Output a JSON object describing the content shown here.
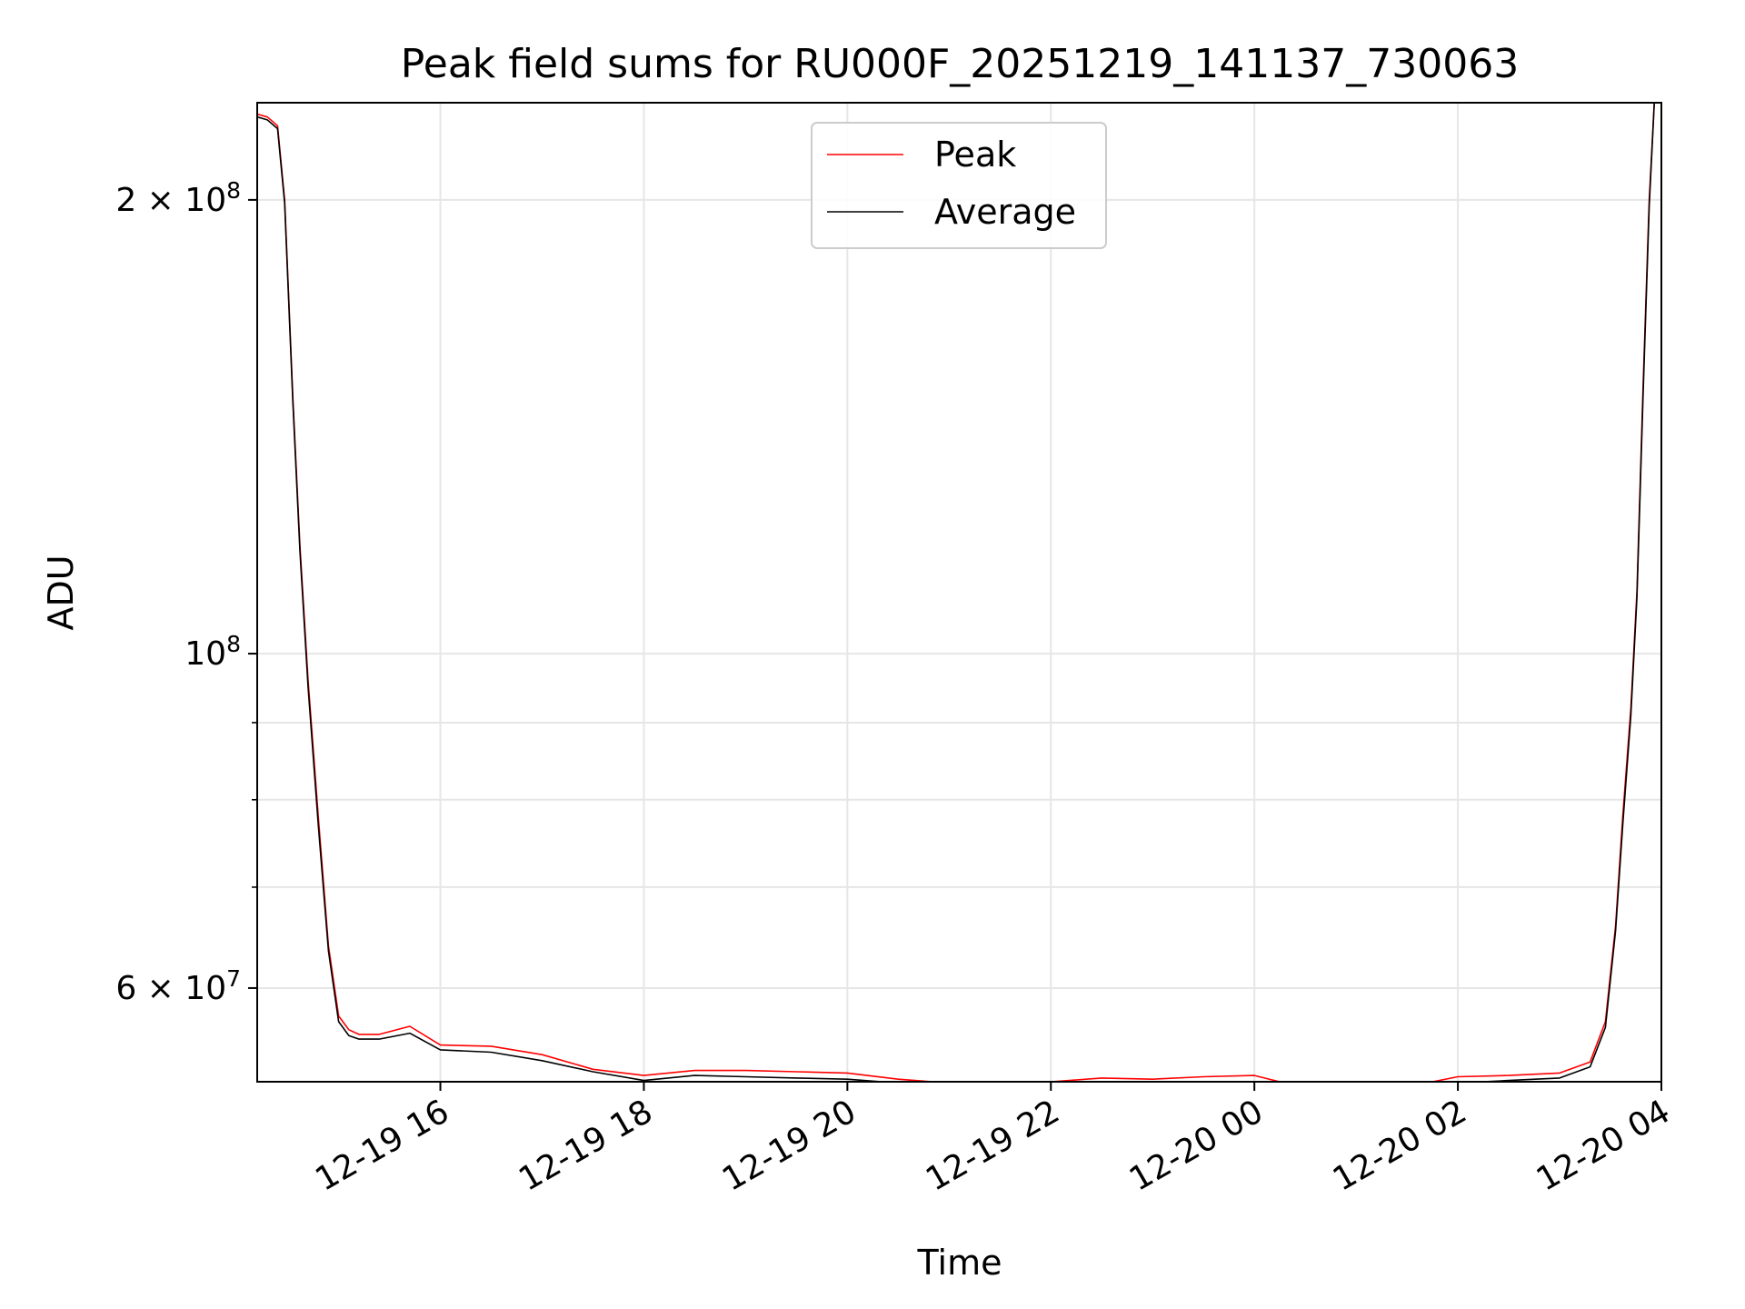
{
  "chart_data": {
    "type": "line",
    "title": "Peak field sums for RU000F_20251219_141137_730063",
    "xlabel": "Time",
    "ylabel": "ADU",
    "yscale": "log",
    "x_unit": "hours since 12-19 00:00",
    "xlim": [
      14.2,
      28.0
    ],
    "ylim": [
      52000000,
      232000000
    ],
    "grid": true,
    "legend_position": "upper center",
    "x_ticks": [
      {
        "value": 16,
        "label": "12-19 16"
      },
      {
        "value": 18,
        "label": "12-19 18"
      },
      {
        "value": 20,
        "label": "12-19 20"
      },
      {
        "value": 22,
        "label": "12-19 22"
      },
      {
        "value": 24,
        "label": "12-20 00"
      },
      {
        "value": 26,
        "label": "12-20 02"
      },
      {
        "value": 28,
        "label": "12-20 04"
      }
    ],
    "y_major_ticks": [
      {
        "value": 60000000,
        "mant": "6",
        "sep": " × ",
        "base": "10",
        "exp": "7"
      },
      {
        "value": 100000000,
        "mant": "",
        "sep": "",
        "base": "10",
        "exp": "8"
      },
      {
        "value": 200000000,
        "mant": "2",
        "sep": " × ",
        "base": "10",
        "exp": "8"
      }
    ],
    "y_minor_ticks": [
      70000000,
      80000000,
      90000000
    ],
    "series": [
      {
        "name": "Peak",
        "color": "#ff0000",
        "x": [
          14.2,
          14.3,
          14.4,
          14.47,
          14.55,
          14.62,
          14.7,
          14.8,
          14.9,
          15.0,
          15.1,
          15.2,
          15.4,
          15.7,
          16.0,
          16.5,
          17.0,
          17.5,
          18.0,
          18.5,
          19.0,
          19.5,
          20.0,
          20.5,
          21.0,
          21.5,
          22.0,
          22.5,
          23.0,
          23.5,
          24.0,
          24.5,
          25.0,
          25.5,
          26.0,
          26.5,
          27.0,
          27.3,
          27.45,
          27.55,
          27.62,
          27.7,
          27.76,
          27.82,
          27.88,
          27.93,
          28.0
        ],
        "y": [
          228000000,
          227000000,
          224000000,
          200000000,
          148000000,
          118000000,
          96000000,
          78000000,
          64000000,
          57500000,
          56300000,
          55900000,
          55900000,
          56600000,
          55000000,
          54900000,
          54200000,
          53000000,
          52500000,
          52900000,
          52900000,
          52800000,
          52700000,
          52200000,
          51900000,
          51800000,
          52000000,
          52300000,
          52200000,
          52400000,
          52500000,
          51500000,
          51300000,
          51600000,
          52400000,
          52500000,
          52700000,
          53600000,
          57000000,
          66000000,
          78000000,
          92000000,
          110000000,
          150000000,
          200000000,
          232000000,
          232000000
        ]
      },
      {
        "name": "Average",
        "color": "#000000",
        "x": [
          14.2,
          14.3,
          14.4,
          14.47,
          14.55,
          14.62,
          14.7,
          14.8,
          14.9,
          15.0,
          15.1,
          15.2,
          15.4,
          15.7,
          16.0,
          16.5,
          17.0,
          17.5,
          18.0,
          18.5,
          19.0,
          19.5,
          20.0,
          20.5,
          21.0,
          21.5,
          22.0,
          22.5,
          23.0,
          23.5,
          24.0,
          24.5,
          25.0,
          25.5,
          26.0,
          26.5,
          27.0,
          27.3,
          27.45,
          27.55,
          27.62,
          27.7,
          27.76,
          27.82,
          27.88,
          27.93,
          28.0
        ],
        "y": [
          227000000,
          226000000,
          223000000,
          199000000,
          147000000,
          117000000,
          95000000,
          77000000,
          63500000,
          57000000,
          55800000,
          55500000,
          55500000,
          56000000,
          54600000,
          54400000,
          53700000,
          52800000,
          52100000,
          52500000,
          52400000,
          52300000,
          52200000,
          51900000,
          51500000,
          51300000,
          51500000,
          51800000,
          51800000,
          52000000,
          51900000,
          51200000,
          51100000,
          51300000,
          51900000,
          52100000,
          52300000,
          53200000,
          56500000,
          65500000,
          77000000,
          91000000,
          109000000,
          148000000,
          198000000,
          232000000,
          232000000
        ]
      }
    ]
  }
}
